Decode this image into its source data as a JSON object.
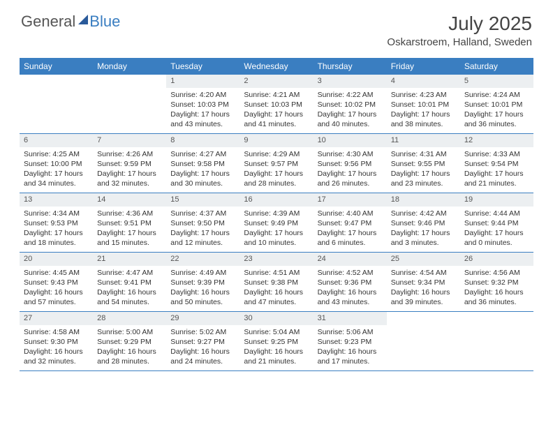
{
  "brand": {
    "word1": "General",
    "word2": "Blue"
  },
  "title": "July 2025",
  "location": "Oskarstroem, Halland, Sweden",
  "colors": {
    "accent": "#3a7ec1",
    "strip_bg": "#eceff1",
    "text": "#333333",
    "title_text": "#444444"
  },
  "day_headers": [
    "Sunday",
    "Monday",
    "Tuesday",
    "Wednesday",
    "Thursday",
    "Friday",
    "Saturday"
  ],
  "weeks": [
    [
      null,
      null,
      {
        "n": "1",
        "sr": "4:20 AM",
        "ss": "10:03 PM",
        "dlh": "17",
        "dlm": "43"
      },
      {
        "n": "2",
        "sr": "4:21 AM",
        "ss": "10:03 PM",
        "dlh": "17",
        "dlm": "41"
      },
      {
        "n": "3",
        "sr": "4:22 AM",
        "ss": "10:02 PM",
        "dlh": "17",
        "dlm": "40"
      },
      {
        "n": "4",
        "sr": "4:23 AM",
        "ss": "10:01 PM",
        "dlh": "17",
        "dlm": "38"
      },
      {
        "n": "5",
        "sr": "4:24 AM",
        "ss": "10:01 PM",
        "dlh": "17",
        "dlm": "36"
      }
    ],
    [
      {
        "n": "6",
        "sr": "4:25 AM",
        "ss": "10:00 PM",
        "dlh": "17",
        "dlm": "34"
      },
      {
        "n": "7",
        "sr": "4:26 AM",
        "ss": "9:59 PM",
        "dlh": "17",
        "dlm": "32"
      },
      {
        "n": "8",
        "sr": "4:27 AM",
        "ss": "9:58 PM",
        "dlh": "17",
        "dlm": "30"
      },
      {
        "n": "9",
        "sr": "4:29 AM",
        "ss": "9:57 PM",
        "dlh": "17",
        "dlm": "28"
      },
      {
        "n": "10",
        "sr": "4:30 AM",
        "ss": "9:56 PM",
        "dlh": "17",
        "dlm": "26"
      },
      {
        "n": "11",
        "sr": "4:31 AM",
        "ss": "9:55 PM",
        "dlh": "17",
        "dlm": "23"
      },
      {
        "n": "12",
        "sr": "4:33 AM",
        "ss": "9:54 PM",
        "dlh": "17",
        "dlm": "21"
      }
    ],
    [
      {
        "n": "13",
        "sr": "4:34 AM",
        "ss": "9:53 PM",
        "dlh": "17",
        "dlm": "18"
      },
      {
        "n": "14",
        "sr": "4:36 AM",
        "ss": "9:51 PM",
        "dlh": "17",
        "dlm": "15"
      },
      {
        "n": "15",
        "sr": "4:37 AM",
        "ss": "9:50 PM",
        "dlh": "17",
        "dlm": "12"
      },
      {
        "n": "16",
        "sr": "4:39 AM",
        "ss": "9:49 PM",
        "dlh": "17",
        "dlm": "10"
      },
      {
        "n": "17",
        "sr": "4:40 AM",
        "ss": "9:47 PM",
        "dlh": "17",
        "dlm": "6"
      },
      {
        "n": "18",
        "sr": "4:42 AM",
        "ss": "9:46 PM",
        "dlh": "17",
        "dlm": "3"
      },
      {
        "n": "19",
        "sr": "4:44 AM",
        "ss": "9:44 PM",
        "dlh": "17",
        "dlm": "0"
      }
    ],
    [
      {
        "n": "20",
        "sr": "4:45 AM",
        "ss": "9:43 PM",
        "dlh": "16",
        "dlm": "57"
      },
      {
        "n": "21",
        "sr": "4:47 AM",
        "ss": "9:41 PM",
        "dlh": "16",
        "dlm": "54"
      },
      {
        "n": "22",
        "sr": "4:49 AM",
        "ss": "9:39 PM",
        "dlh": "16",
        "dlm": "50"
      },
      {
        "n": "23",
        "sr": "4:51 AM",
        "ss": "9:38 PM",
        "dlh": "16",
        "dlm": "47"
      },
      {
        "n": "24",
        "sr": "4:52 AM",
        "ss": "9:36 PM",
        "dlh": "16",
        "dlm": "43"
      },
      {
        "n": "25",
        "sr": "4:54 AM",
        "ss": "9:34 PM",
        "dlh": "16",
        "dlm": "39"
      },
      {
        "n": "26",
        "sr": "4:56 AM",
        "ss": "9:32 PM",
        "dlh": "16",
        "dlm": "36"
      }
    ],
    [
      {
        "n": "27",
        "sr": "4:58 AM",
        "ss": "9:30 PM",
        "dlh": "16",
        "dlm": "32"
      },
      {
        "n": "28",
        "sr": "5:00 AM",
        "ss": "9:29 PM",
        "dlh": "16",
        "dlm": "28"
      },
      {
        "n": "29",
        "sr": "5:02 AM",
        "ss": "9:27 PM",
        "dlh": "16",
        "dlm": "24"
      },
      {
        "n": "30",
        "sr": "5:04 AM",
        "ss": "9:25 PM",
        "dlh": "16",
        "dlm": "21"
      },
      {
        "n": "31",
        "sr": "5:06 AM",
        "ss": "9:23 PM",
        "dlh": "16",
        "dlm": "17"
      },
      null,
      null
    ]
  ],
  "labels": {
    "sunrise_prefix": "Sunrise: ",
    "sunset_prefix": "Sunset: ",
    "daylight_prefix": "Daylight: ",
    "hours_word": " hours and ",
    "minutes_word": " minutes."
  }
}
